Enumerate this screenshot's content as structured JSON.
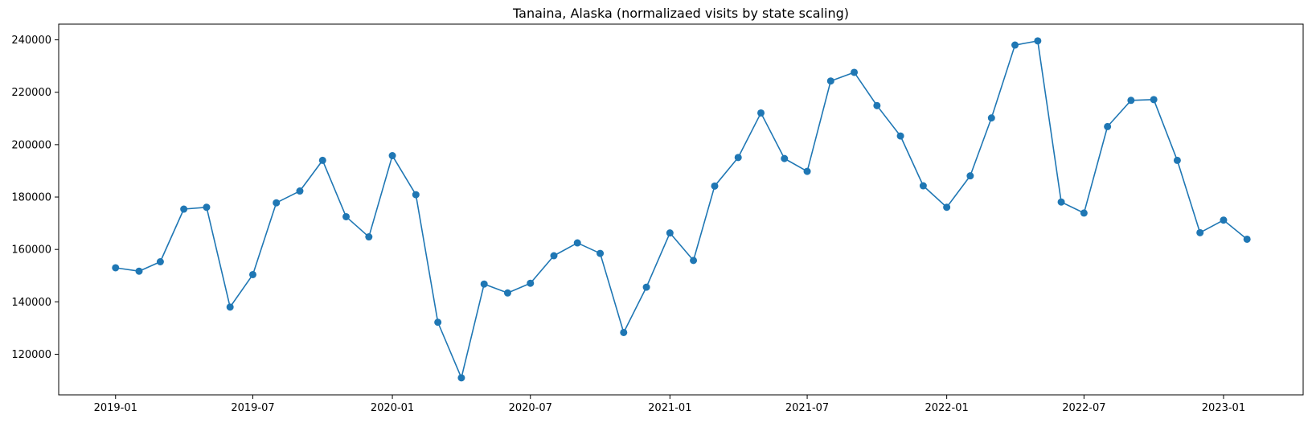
{
  "chart_data": {
    "type": "line",
    "title": "Tanaina, Alaska (normalizaed visits by state scaling)",
    "xlabel": "",
    "ylabel": "",
    "x_ticks": [
      "2019-01",
      "2019-07",
      "2020-01",
      "2020-07",
      "2021-01",
      "2021-07",
      "2022-01",
      "2022-07",
      "2023-01"
    ],
    "y_ticks": [
      "120000",
      "140000",
      "160000",
      "180000",
      "200000",
      "220000",
      "240000"
    ],
    "ylim": [
      104500,
      246000
    ],
    "xlim": [
      "2018-10-18",
      "2023-04-16"
    ],
    "grid": false,
    "series": [
      {
        "color": "#1f77b4",
        "marker": "circle",
        "x": [
          "2019-01-01",
          "2019-02-01",
          "2019-03-01",
          "2019-04-01",
          "2019-05-01",
          "2019-06-01",
          "2019-07-01",
          "2019-08-01",
          "2019-09-01",
          "2019-10-01",
          "2019-11-01",
          "2019-12-01",
          "2020-01-01",
          "2020-02-01",
          "2020-03-01",
          "2020-04-01",
          "2020-05-01",
          "2020-06-01",
          "2020-07-01",
          "2020-08-01",
          "2020-09-01",
          "2020-10-01",
          "2020-11-01",
          "2020-12-01",
          "2021-01-01",
          "2021-02-01",
          "2021-03-01",
          "2021-04-01",
          "2021-05-01",
          "2021-06-01",
          "2021-07-01",
          "2021-08-01",
          "2021-09-01",
          "2021-10-01",
          "2021-11-01",
          "2021-12-01",
          "2022-01-01",
          "2022-02-01",
          "2022-03-01",
          "2022-04-01",
          "2022-05-01",
          "2022-06-01",
          "2022-07-01",
          "2022-08-01",
          "2022-09-01",
          "2022-10-01",
          "2022-11-01",
          "2022-12-01",
          "2023-01-01",
          "2023-02-01"
        ],
        "values": [
          153000,
          151700,
          155300,
          175400,
          176100,
          138000,
          150400,
          177800,
          182300,
          194000,
          172500,
          164800,
          195800,
          180900,
          132200,
          111000,
          146800,
          143400,
          147100,
          157600,
          162500,
          158500,
          128300,
          145600,
          166300,
          155800,
          184200,
          195100,
          212100,
          194700,
          189800,
          224300,
          227600,
          214900,
          203300,
          184300,
          176100,
          188100,
          210200,
          238000,
          239600,
          178100,
          173900,
          206900,
          216900,
          217200,
          194000,
          166400,
          171200,
          163900
        ]
      }
    ]
  }
}
